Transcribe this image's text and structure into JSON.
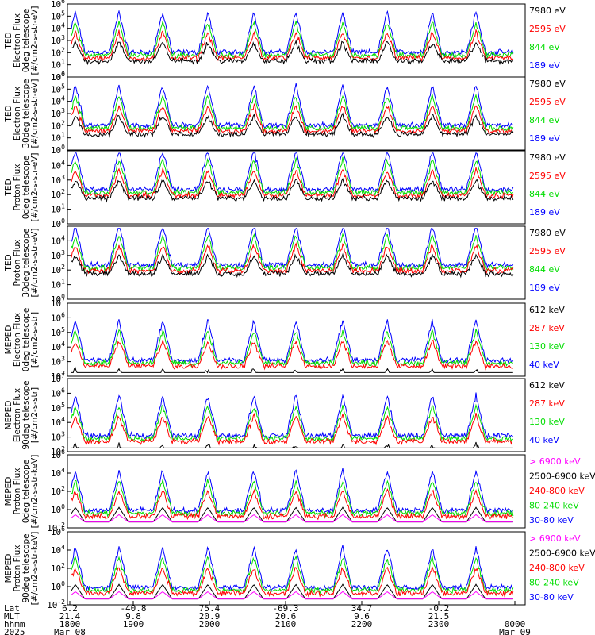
{
  "chart_data": [
    {
      "type": "line",
      "ylabel": [
        "TED",
        "Electron Flux",
        "0deg telescope",
        "[#/cm2-s-str-eV]"
      ],
      "y_exponents": [
        0,
        1,
        2,
        3,
        4,
        5,
        6
      ],
      "ylim": [
        1,
        1000000
      ],
      "log_scale": true,
      "series": [
        {
          "name": "7980 eV",
          "color": "#000000"
        },
        {
          "name": "2595 eV",
          "color": "#ff0000"
        },
        {
          "name": "844 eV",
          "color": "#00dd00"
        },
        {
          "name": "189 eV",
          "color": "#0000ff"
        }
      ]
    },
    {
      "type": "line",
      "ylabel": [
        "TED",
        "Electron Flux",
        "30deg telescope",
        "[#/cm2-s-str-eV]"
      ],
      "y_exponents": [
        0,
        1,
        2,
        3,
        4,
        5,
        6
      ],
      "ylim": [
        1,
        1000000
      ],
      "log_scale": true,
      "series": [
        {
          "name": "7980 eV",
          "color": "#000000"
        },
        {
          "name": "2595 eV",
          "color": "#ff0000"
        },
        {
          "name": "844 eV",
          "color": "#00dd00"
        },
        {
          "name": "189 eV",
          "color": "#0000ff"
        }
      ]
    },
    {
      "type": "line",
      "ylabel": [
        "TED",
        "Proton Flux",
        "0deg telescope",
        "[#/cm2-s-str-eV]"
      ],
      "y_exponents": [
        0,
        1,
        2,
        3,
        4
      ],
      "ylim": [
        1,
        100000
      ],
      "log_scale": true,
      "series": [
        {
          "name": "7980 eV",
          "color": "#000000"
        },
        {
          "name": "2595 eV",
          "color": "#ff0000"
        },
        {
          "name": "844 eV",
          "color": "#00dd00"
        },
        {
          "name": "189 eV",
          "color": "#0000ff"
        }
      ]
    },
    {
      "type": "line",
      "ylabel": [
        "TED",
        "Proton Flux",
        "30deg telescope",
        "[#/cm2-s-str-eV]"
      ],
      "y_exponents": [
        0,
        1,
        2,
        3,
        4
      ],
      "ylim": [
        1,
        100000
      ],
      "log_scale": true,
      "series": [
        {
          "name": "7980 eV",
          "color": "#000000"
        },
        {
          "name": "2595 eV",
          "color": "#ff0000"
        },
        {
          "name": "844 eV",
          "color": "#00dd00"
        },
        {
          "name": "189 eV",
          "color": "#0000ff"
        }
      ]
    },
    {
      "type": "line",
      "ylabel": [
        "MEPED",
        "Electron Flux",
        "0deg telescope",
        "[#/cm2-s-str]"
      ],
      "y_exponents": [
        2,
        3,
        4,
        5,
        6,
        7
      ],
      "ylim": [
        100,
        10000000
      ],
      "log_scale": true,
      "series": [
        {
          "name": "612 keV",
          "color": "#000000"
        },
        {
          "name": "287 keV",
          "color": "#ff0000"
        },
        {
          "name": "130 keV",
          "color": "#00dd00"
        },
        {
          "name": "40 keV",
          "color": "#0000ff"
        }
      ]
    },
    {
      "type": "line",
      "ylabel": [
        "MEPED",
        "Electron Flux",
        "90deg telescope",
        "[#/cm2-s-str]"
      ],
      "y_exponents": [
        2,
        3,
        4,
        5,
        6,
        7
      ],
      "ylim": [
        100,
        10000000
      ],
      "log_scale": true,
      "series": [
        {
          "name": "612 keV",
          "color": "#000000"
        },
        {
          "name": "287 keV",
          "color": "#ff0000"
        },
        {
          "name": "130 keV",
          "color": "#00dd00"
        },
        {
          "name": "40 keV",
          "color": "#0000ff"
        }
      ]
    },
    {
      "type": "line",
      "ylabel": [
        "MEPED",
        "Proton Flux",
        "0deg telescope",
        "[#/cm2-s-str-keV]"
      ],
      "y_exponents": [
        -2,
        0,
        2,
        4,
        6
      ],
      "ylim": [
        0.01,
        1000000
      ],
      "log_scale": true,
      "series": [
        {
          "name": "> 6900 keV",
          "color": "#ff00ff"
        },
        {
          "name": "2500-6900 keV",
          "color": "#000000"
        },
        {
          "name": "240-800 keV",
          "color": "#ff0000"
        },
        {
          "name": "80-240 keV",
          "color": "#00dd00"
        },
        {
          "name": "30-80 keV",
          "color": "#0000ff"
        }
      ]
    },
    {
      "type": "line",
      "ylabel": [
        "MEPED",
        "Proton Flux",
        "90deg telescope",
        "[#/cm2-s-str-keV]"
      ],
      "y_exponents": [
        -2,
        0,
        2,
        4,
        6
      ],
      "ylim": [
        0.01,
        1000000
      ],
      "log_scale": true,
      "series": [
        {
          "name": "> 6900 keV",
          "color": "#ff00ff"
        },
        {
          "name": "2500-6900 keV",
          "color": "#000000"
        },
        {
          "name": "240-800 keV",
          "color": "#ff0000"
        },
        {
          "name": "80-240 keV",
          "color": "#00dd00"
        },
        {
          "name": "30-80 keV",
          "color": "#0000ff"
        }
      ]
    }
  ],
  "x_axis": {
    "row_labels": [
      "Lat",
      "MLT",
      "hhmm",
      "2025"
    ],
    "ticks": [
      {
        "Lat": "6.2",
        "MLT": "21.4",
        "hhmm": "1800",
        "date": "Mar 08"
      },
      {
        "Lat": "-40.8",
        "MLT": "9.8",
        "hhmm": "1900",
        "date": ""
      },
      {
        "Lat": "75.4",
        "MLT": "20.9",
        "hhmm": "2000",
        "date": ""
      },
      {
        "Lat": "-69.3",
        "MLT": "20.6",
        "hhmm": "2100",
        "date": ""
      },
      {
        "Lat": "34.7",
        "MLT": "9.6",
        "hhmm": "2200",
        "date": ""
      },
      {
        "Lat": "-0.2",
        "MLT": "21.5",
        "hhmm": "2300",
        "date": ""
      },
      {
        "Lat": "",
        "MLT": "",
        "hhmm": "0000",
        "date": "Mar 09"
      }
    ]
  }
}
